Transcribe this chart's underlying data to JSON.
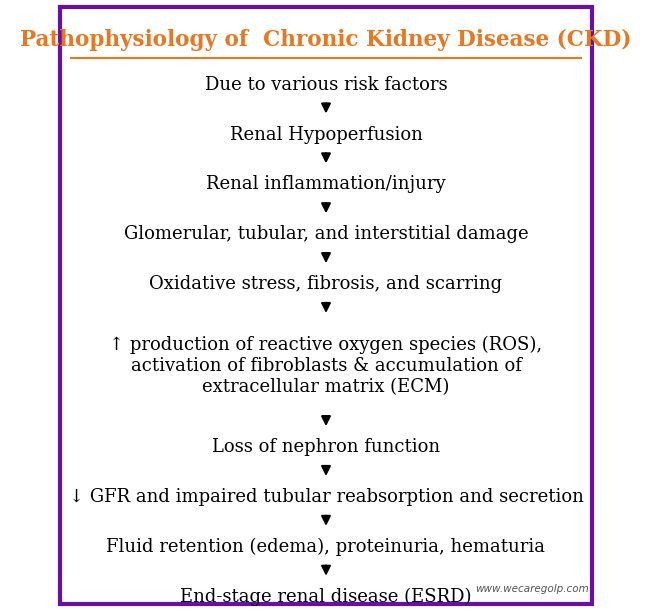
{
  "title": "Pathophysiology of  Chronic Kidney Disease (CKD)",
  "title_color": "#E87722",
  "title_fontsize": 15.5,
  "background_color": "#ffffff",
  "border_color": "#6A0DAD",
  "border_linewidth": 3,
  "text_color": "#000000",
  "watermark": "www.wecaregolp.com",
  "steps": [
    "Due to various risk factors",
    "Renal Hypoperfusion",
    "Renal inflammation/injury",
    "Glomerular, tubular, and interstitial damage",
    "Oxidative stress, fibrosis, and scarring",
    "↑ production of reactive oxygen species (ROS),\nactivation of fibroblasts & accumulation of\nextracellular matrix (ECM)",
    "Loss of nephron function",
    "↓ GFR and impaired tubular reabsorption and secretion",
    "Fluid retention (edema), proteinuria, hematuria",
    "End-stage renal disease (ESRD)"
  ],
  "step_fontsize": 13,
  "arrow_color": "#000000",
  "fig_width": 6.52,
  "fig_height": 6.11
}
